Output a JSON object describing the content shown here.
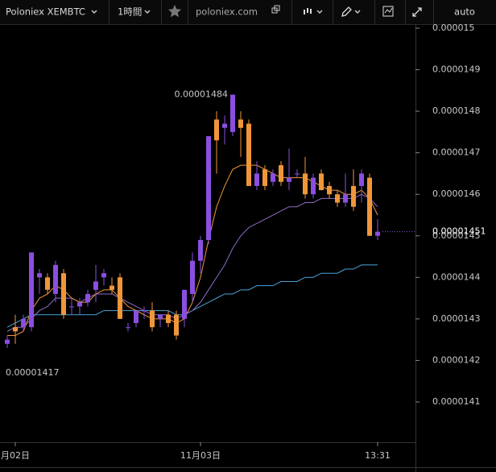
{
  "toolbar": {
    "symbol": "Poloniex XEMBTC",
    "interval": "1時間",
    "site": "poloniex.com",
    "scale": "auto"
  },
  "chart_data": {
    "type": "candlestick",
    "categories": [
      null,
      "月02日",
      null,
      null,
      null,
      null,
      null,
      null,
      null,
      null,
      null,
      null,
      null,
      null,
      null,
      null,
      null,
      null,
      null,
      null,
      null,
      null,
      null,
      null,
      "11月03日",
      null,
      null,
      null,
      null,
      null,
      null,
      null,
      null,
      null,
      null,
      null,
      null,
      null,
      null,
      null,
      null,
      null,
      null,
      null,
      null,
      null,
      "13:31"
    ],
    "open": [
      1.424e-05,
      1.428e-05,
      1.428e-05,
      1.428e-05,
      1.44e-05,
      1.44e-05,
      1.436e-05,
      1.441e-05,
      1.433e-05,
      1.433e-05,
      1.434e-05,
      1.437e-05,
      1.44e-05,
      1.438e-05,
      1.44e-05,
      1.428e-05,
      1.429e-05,
      1.432e-05,
      1.432e-05,
      1.43e-05,
      1.431e-05,
      1.431e-05,
      1.43e-05,
      1.436e-05,
      1.444e-05,
      1.449e-05,
      1.478e-05,
      1.476e-05,
      1.475e-05,
      1.478e-05,
      1.477e-05,
      1.462e-05,
      1.466e-05,
      1.463e-05,
      1.467e-05,
      1.463e-05,
      1.465e-05,
      1.465e-05,
      1.46e-05,
      1.465e-05,
      1.462e-05,
      1.46e-05,
      1.458e-05,
      1.462e-05,
      1.462e-05,
      1.464e-05,
      1.45e-05
    ],
    "high": [
      1.426e-05,
      1.431e-05,
      1.431e-05,
      1.446e-05,
      1.442e-05,
      1.441e-05,
      1.444e-05,
      1.442e-05,
      1.435e-05,
      1.435e-05,
      1.437e-05,
      1.443e-05,
      1.442e-05,
      1.44e-05,
      1.441e-05,
      1.429e-05,
      1.432e-05,
      1.433e-05,
      1.434e-05,
      1.431e-05,
      1.432e-05,
      1.432e-05,
      1.437e-05,
      1.446e-05,
      1.45e-05,
      1.474e-05,
      1.48e-05,
      1.479e-05,
      1.484e-05,
      1.48e-05,
      1.478e-05,
      1.468e-05,
      1.467e-05,
      1.466e-05,
      1.468e-05,
      1.471e-05,
      1.466e-05,
      1.469e-05,
      1.465e-05,
      1.466e-05,
      1.463e-05,
      1.461e-05,
      1.465e-05,
      1.466e-05,
      1.466e-05,
      1.465e-05,
      1.454e-05
    ],
    "low": [
      1.423e-05,
      1.424e-05,
      1.427e-05,
      1.427e-05,
      1.436e-05,
      1.436e-05,
      1.434e-05,
      1.43e-05,
      1.431e-05,
      1.431e-05,
      1.433e-05,
      1.434e-05,
      1.438e-05,
      1.436e-05,
      1.43e-05,
      1.427e-05,
      1.428e-05,
      1.43e-05,
      1.427e-05,
      1.428e-05,
      1.428e-05,
      1.425e-05,
      1.428e-05,
      1.434e-05,
      1.441e-05,
      1.448e-05,
      1.465e-05,
      1.472e-05,
      1.474e-05,
      1.469e-05,
      1.462e-05,
      1.461e-05,
      1.461e-05,
      1.462e-05,
      1.462e-05,
      1.461e-05,
      1.464e-05,
      1.459e-05,
      1.459e-05,
      1.461e-05,
      1.459e-05,
      1.457e-05,
      1.457e-05,
      1.456e-05,
      1.458e-05,
      1.45e-05,
      1.449e-05
    ],
    "close": [
      1.425e-05,
      1.427e-05,
      1.43e-05,
      1.446e-05,
      1.441e-05,
      1.437e-05,
      1.443e-05,
      1.431e-05,
      1.433e-05,
      1.434e-05,
      1.436e-05,
      1.439e-05,
      1.441e-05,
      1.437e-05,
      1.43e-05,
      1.428e-05,
      1.432e-05,
      1.432e-05,
      1.428e-05,
      1.431e-05,
      1.429e-05,
      1.426e-05,
      1.437e-05,
      1.444e-05,
      1.449e-05,
      1.474e-05,
      1.473e-05,
      1.477e-05,
      1.484e-05,
      1.476e-05,
      1.462e-05,
      1.465e-05,
      1.462e-05,
      1.465e-05,
      1.463e-05,
      1.464e-05,
      1.465e-05,
      1.46e-05,
      1.464e-05,
      1.461e-05,
      1.46e-05,
      1.458e-05,
      1.46e-05,
      1.457e-05,
      1.465e-05,
      1.45e-05,
      1.451e-05
    ],
    "up_color": "#8a4fe0",
    "down_color": "#f0963a",
    "series": [
      {
        "color": "#4aa3d8",
        "values": [
          1.428e-05,
          1.429e-05,
          1.43e-05,
          1.431e-05,
          1.431e-05,
          1.431e-05,
          1.431e-05,
          1.431e-05,
          1.431e-05,
          1.431e-05,
          1.431e-05,
          1.431e-05,
          1.432e-05,
          1.432e-05,
          1.432e-05,
          1.432e-05,
          1.432e-05,
          1.432e-05,
          1.432e-05,
          1.432e-05,
          1.432e-05,
          1.431e-05,
          1.431e-05,
          1.432e-05,
          1.433e-05,
          1.434e-05,
          1.435e-05,
          1.436e-05,
          1.436e-05,
          1.437e-05,
          1.437e-05,
          1.438e-05,
          1.438e-05,
          1.438e-05,
          1.439e-05,
          1.439e-05,
          1.439e-05,
          1.44e-05,
          1.44e-05,
          1.441e-05,
          1.441e-05,
          1.441e-05,
          1.442e-05,
          1.442e-05,
          1.443e-05,
          1.443e-05,
          1.443e-05
        ]
      },
      {
        "color": "#8e6cc4",
        "values": [
          1.427e-05,
          1.428e-05,
          1.428e-05,
          1.43e-05,
          1.432e-05,
          1.433e-05,
          1.435e-05,
          1.435e-05,
          1.435e-05,
          1.434e-05,
          1.435e-05,
          1.436e-05,
          1.436e-05,
          1.436e-05,
          1.435e-05,
          1.434e-05,
          1.433e-05,
          1.432e-05,
          1.431e-05,
          1.431e-05,
          1.431e-05,
          1.43e-05,
          1.431e-05,
          1.432e-05,
          1.434e-05,
          1.437e-05,
          1.44e-05,
          1.443e-05,
          1.447e-05,
          1.45e-05,
          1.452e-05,
          1.453e-05,
          1.454e-05,
          1.455e-05,
          1.456e-05,
          1.457e-05,
          1.457e-05,
          1.458e-05,
          1.458e-05,
          1.459e-05,
          1.459e-05,
          1.459e-05,
          1.459e-05,
          1.459e-05,
          1.46e-05,
          1.459e-05,
          1.457e-05
        ]
      },
      {
        "color": "#f0963a",
        "values": [
          1.426e-05,
          1.426e-05,
          1.427e-05,
          1.432e-05,
          1.435e-05,
          1.436e-05,
          1.438e-05,
          1.437e-05,
          1.435e-05,
          1.434e-05,
          1.434e-05,
          1.436e-05,
          1.437e-05,
          1.437e-05,
          1.435e-05,
          1.433e-05,
          1.432e-05,
          1.431e-05,
          1.43e-05,
          1.43e-05,
          1.43e-05,
          1.429e-05,
          1.43e-05,
          1.434e-05,
          1.44e-05,
          1.449e-05,
          1.457e-05,
          1.462e-05,
          1.466e-05,
          1.467e-05,
          1.467e-05,
          1.467e-05,
          1.466e-05,
          1.465e-05,
          1.464e-05,
          1.464e-05,
          1.464e-05,
          1.464e-05,
          1.463e-05,
          1.462e-05,
          1.461e-05,
          1.461e-05,
          1.46e-05,
          1.46e-05,
          1.461e-05,
          1.459e-05,
          1.455e-05
        ]
      }
    ],
    "ylim": [
      1.4005e-05,
      1.50097e-05
    ],
    "yticks": [
      1.5e-05,
      1.49e-05,
      1.48e-05,
      1.47e-05,
      1.46e-05,
      1.45e-05,
      1.44e-05,
      1.43e-05,
      1.42e-05,
      1.41e-05
    ],
    "last_price": 1.451e-05,
    "max_label": 1.484e-05,
    "min_label": 1.417e-05
  }
}
